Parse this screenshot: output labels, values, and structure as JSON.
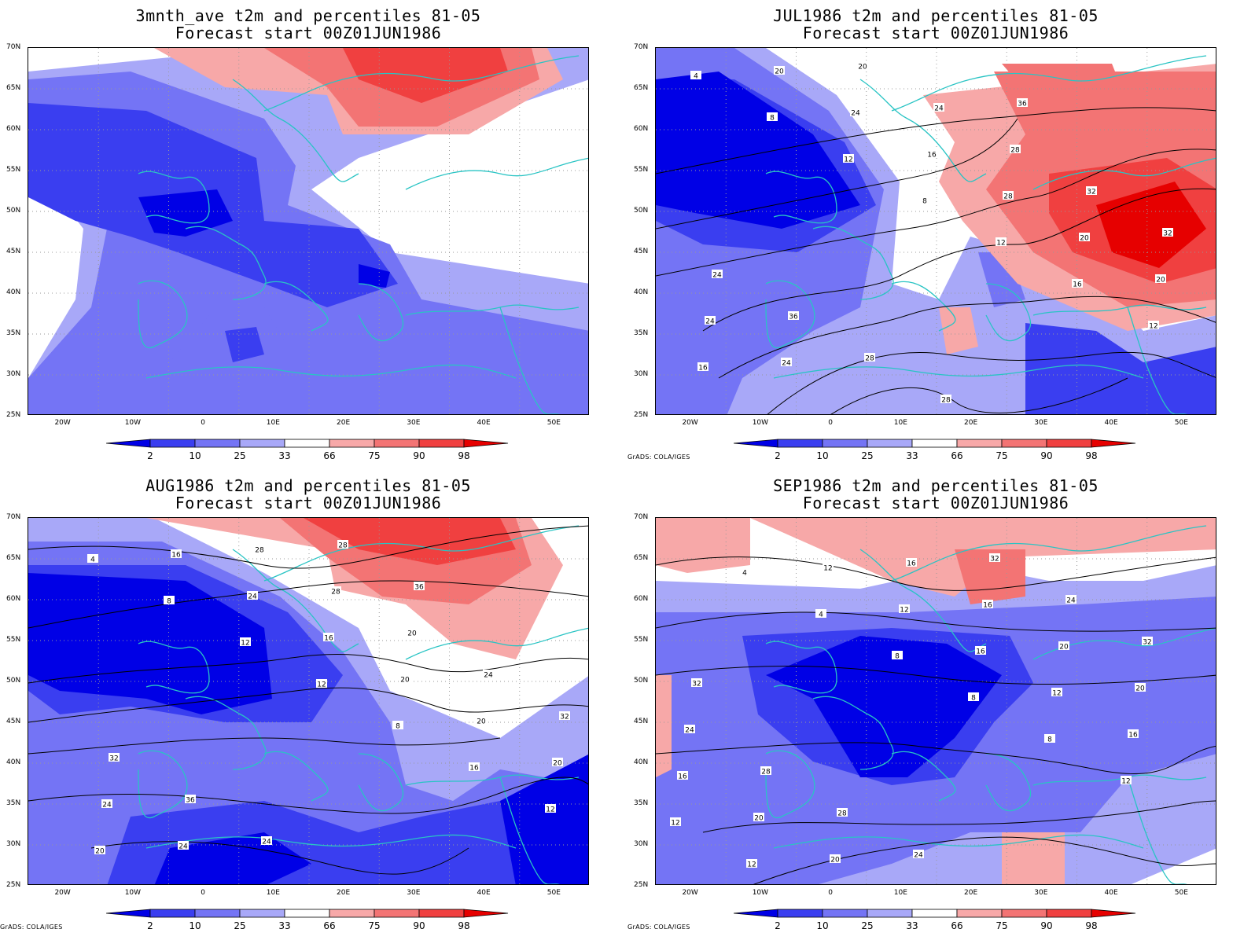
{
  "panels": [
    {
      "title_line1": "3mnth_ave t2m and percentiles 81-05",
      "title_line2": "Forecast start 00Z01JUN1986",
      "credit": "",
      "contour_labels": []
    },
    {
      "title_line1": "JUL1986 t2m and percentiles 81-05",
      "title_line2": "Forecast start 00Z01JUN1986",
      "credit": "GrADS: COLA/IGES",
      "contour_labels": [
        "4",
        "8",
        "12",
        "8",
        "12",
        "16",
        "12",
        "16",
        "20",
        "24",
        "16",
        "28",
        "20",
        "20",
        "24",
        "24",
        "20",
        "24",
        "28",
        "32",
        "32",
        "24",
        "36",
        "28",
        "28",
        "36"
      ]
    },
    {
      "title_line1": "AUG1986 t2m and percentiles 81-05",
      "title_line2": "Forecast start 00Z01JUN1986",
      "credit": "GrADS: COLA/IGES",
      "contour_labels": [
        "4",
        "8",
        "12",
        "12",
        "8",
        "16",
        "12",
        "20",
        "16",
        "24",
        "16",
        "20",
        "20",
        "20",
        "24",
        "24",
        "28",
        "28",
        "20",
        "24",
        "32",
        "32",
        "36",
        "24",
        "28",
        "36"
      ]
    },
    {
      "title_line1": "SEP1986 t2m and percentiles 81-05",
      "title_line2": "Forecast start 00Z01JUN1986",
      "credit": "GrADS: COLA/IGES",
      "contour_labels": [
        "4",
        "4",
        "8",
        "8",
        "8",
        "12",
        "12",
        "12",
        "12",
        "12",
        "16",
        "12",
        "16",
        "16",
        "20",
        "20",
        "16",
        "16",
        "20",
        "20",
        "24",
        "28",
        "28",
        "24",
        "32",
        "24",
        "32",
        "32"
      ]
    }
  ],
  "axes": {
    "y_ticks": [
      "70N",
      "65N",
      "60N",
      "55N",
      "50N",
      "45N",
      "40N",
      "35N",
      "30N",
      "25N"
    ],
    "x_ticks": [
      "20W",
      "10W",
      "0",
      "10E",
      "20E",
      "30E",
      "40E",
      "50E"
    ],
    "lon_range": [
      -25,
      55
    ],
    "lat_range": [
      25,
      70
    ]
  },
  "colorbar": {
    "labels": [
      "2",
      "10",
      "25",
      "33",
      "66",
      "75",
      "90",
      "98"
    ],
    "colors": [
      "#0000e6",
      "#3a3ef0",
      "#7474f5",
      "#a8a8f8",
      "#ffffff",
      "#f7a8a8",
      "#f37474",
      "#f04040",
      "#e60000"
    ]
  },
  "colors": {
    "coast": "#29c4c4",
    "contour": "#000000",
    "grid": "#999999"
  }
}
